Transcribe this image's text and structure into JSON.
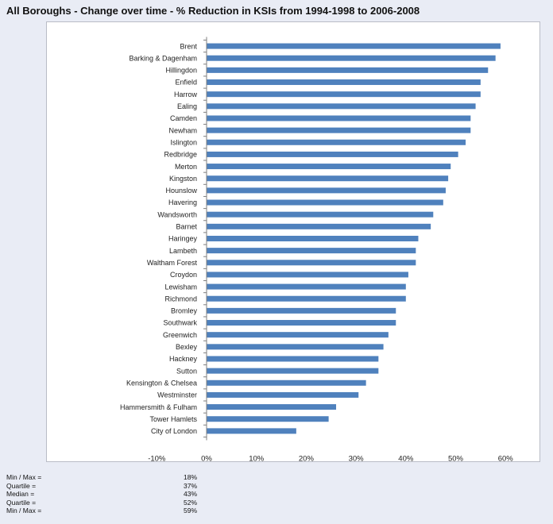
{
  "chart_data": {
    "type": "bar",
    "orientation": "horizontal",
    "title": "All Boroughs - Change over time - % Reduction in KSIs from 1994-1998 to 2006-2008",
    "xlabel": "",
    "ylabel": "",
    "xlim": [
      -10,
      60
    ],
    "xticks": [
      "-10%",
      "0%",
      "10%",
      "20%",
      "30%",
      "40%",
      "50%",
      "60%"
    ],
    "grid": false,
    "bar_color": "#4f81bd",
    "categories": [
      "Brent",
      "Barking & Dagenham",
      "Hillingdon",
      "Enfield",
      "Harrow",
      "Ealing",
      "Camden",
      "Newham",
      "Islington",
      "Redbridge",
      "Merton",
      "Kingston",
      "Hounslow",
      "Havering",
      "Wandsworth",
      "Barnet",
      "Haringey",
      "Lambeth",
      "Waltham Forest",
      "Croydon",
      "Lewisham",
      "Richmond",
      "Bromley",
      "Southwark",
      "Greenwich",
      "Bexley",
      "Hackney",
      "Sutton",
      "Kensington & Chelsea",
      "Westminster",
      "Hammersmith & Fulham",
      "Tower Hamlets",
      "City of London"
    ],
    "values": [
      59,
      58,
      56.5,
      55,
      55,
      54,
      53,
      53,
      52,
      50.5,
      49,
      48.5,
      48,
      47.5,
      45.5,
      45,
      42.5,
      42,
      42,
      40.5,
      40,
      40,
      38,
      38,
      36.5,
      35.5,
      34.5,
      34.5,
      32,
      30.5,
      26,
      24.5,
      18
    ]
  },
  "stats": [
    {
      "label": "Min / Max =",
      "value": "18%"
    },
    {
      "label": "Quartile =",
      "value": "37%"
    },
    {
      "label": "Median =",
      "value": "43%"
    },
    {
      "label": "Quartile =",
      "value": "52%"
    },
    {
      "label": "Min / Max =",
      "value": "59%"
    }
  ]
}
